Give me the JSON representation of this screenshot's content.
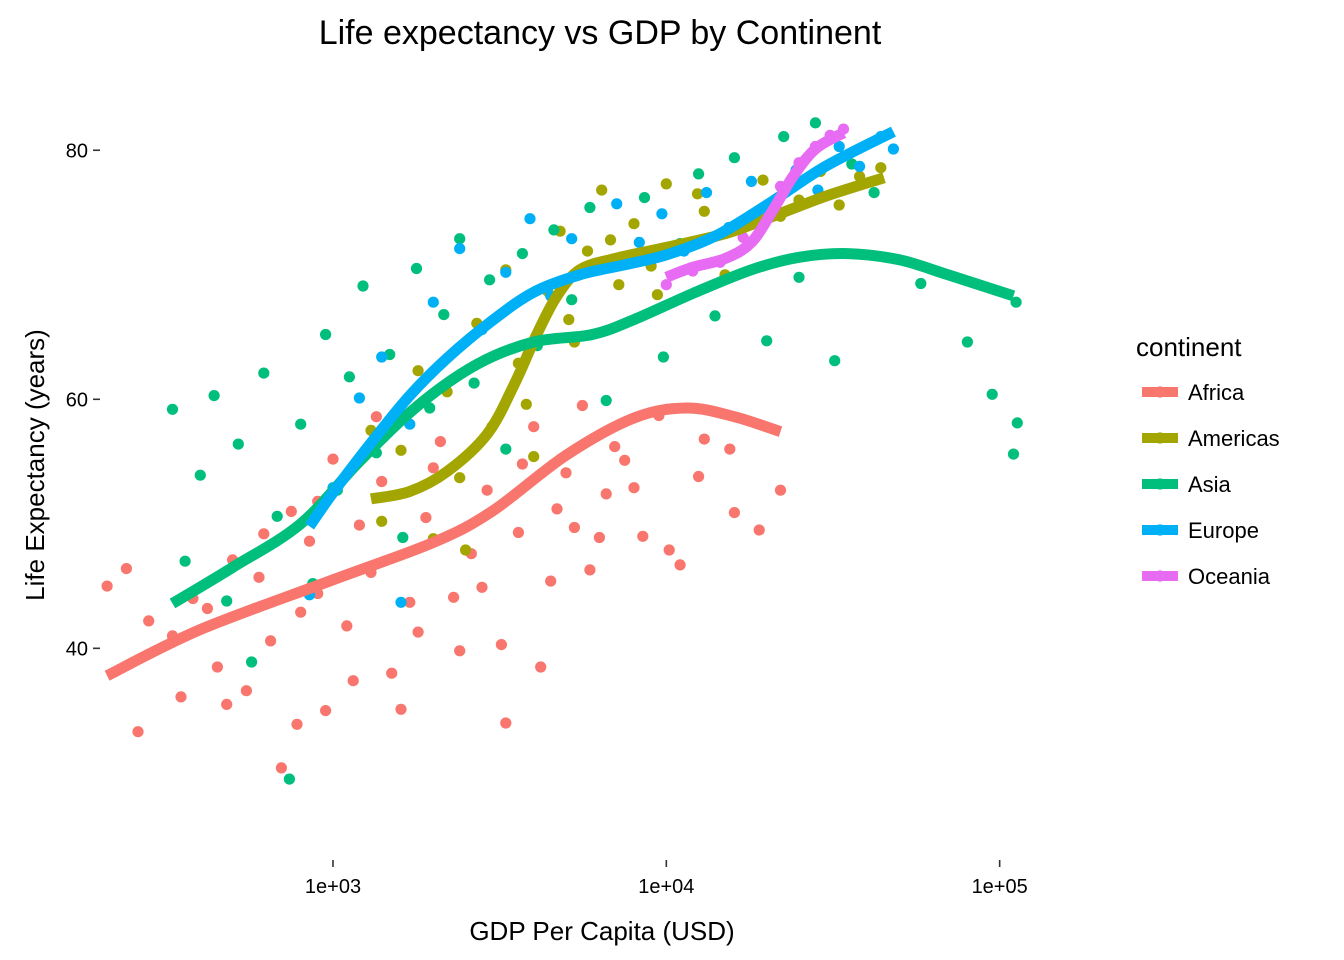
{
  "chart_data": {
    "type": "scatter",
    "title": "Life expectancy vs GDP by Continent",
    "xlabel": "GDP Per Capita (USD)",
    "ylabel": "Life Expectancy (years)",
    "xscale": "log10",
    "xlim": [
      200,
      200000
    ],
    "ylim": [
      23,
      85
    ],
    "x_ticks": [
      1000,
      10000,
      100000
    ],
    "x_tick_labels": [
      "1e+03",
      "1e+04",
      "1e+05"
    ],
    "y_ticks": [
      40,
      60,
      80
    ],
    "y_tick_labels": [
      "40",
      "60",
      "80"
    ],
    "grid": false,
    "legend": {
      "title": "continent",
      "position": "right"
    },
    "smooth_lines": true,
    "series": [
      {
        "name": "Africa",
        "color": "#F8766D",
        "trend": [
          [
            210,
            37.8
          ],
          [
            400,
            41.5
          ],
          [
            1000,
            45.5
          ],
          [
            2000,
            48.5
          ],
          [
            3000,
            51.0
          ],
          [
            5000,
            55.5
          ],
          [
            8000,
            58.5
          ],
          [
            11500,
            59.3
          ],
          [
            16000,
            58.6
          ],
          [
            22000,
            57.4
          ]
        ],
        "points": [
          [
            210,
            45.0
          ],
          [
            240,
            46.4
          ],
          [
            280,
            42.2
          ],
          [
            330,
            41.0
          ],
          [
            380,
            44.0
          ],
          [
            420,
            43.2
          ],
          [
            450,
            38.5
          ],
          [
            500,
            47.1
          ],
          [
            550,
            36.6
          ],
          [
            600,
            45.7
          ],
          [
            650,
            40.6
          ],
          [
            700,
            30.4
          ],
          [
            750,
            51.0
          ],
          [
            800,
            42.9
          ],
          [
            850,
            48.6
          ],
          [
            900,
            44.4
          ],
          [
            950,
            35.0
          ],
          [
            1000,
            55.2
          ],
          [
            1100,
            41.8
          ],
          [
            1200,
            49.9
          ],
          [
            1300,
            46.1
          ],
          [
            1400,
            53.4
          ],
          [
            1500,
            38.0
          ],
          [
            1700,
            43.7
          ],
          [
            1900,
            50.5
          ],
          [
            2100,
            56.6
          ],
          [
            2300,
            44.1
          ],
          [
            2600,
            47.6
          ],
          [
            2900,
            52.7
          ],
          [
            3200,
            40.3
          ],
          [
            3600,
            49.3
          ],
          [
            4000,
            57.8
          ],
          [
            4500,
            45.4
          ],
          [
            5000,
            54.1
          ],
          [
            5600,
            59.5
          ],
          [
            6300,
            48.9
          ],
          [
            7000,
            56.2
          ],
          [
            8000,
            52.9
          ],
          [
            9500,
            58.7
          ],
          [
            11000,
            46.7
          ],
          [
            13000,
            56.8
          ],
          [
            16000,
            50.9
          ],
          [
            19000,
            49.5
          ],
          [
            22000,
            52.7
          ],
          [
            260,
            33.3
          ],
          [
            350,
            36.1
          ],
          [
            480,
            35.5
          ],
          [
            620,
            49.2
          ],
          [
            780,
            33.9
          ],
          [
            900,
            51.8
          ],
          [
            1150,
            37.4
          ],
          [
            1350,
            58.6
          ],
          [
            1600,
            35.1
          ],
          [
            1800,
            41.3
          ],
          [
            2000,
            54.5
          ],
          [
            2400,
            39.8
          ],
          [
            2800,
            44.9
          ],
          [
            3300,
            34.0
          ],
          [
            3700,
            54.8
          ],
          [
            4200,
            38.5
          ],
          [
            4700,
            51.2
          ],
          [
            5300,
            49.7
          ],
          [
            5900,
            46.3
          ],
          [
            6600,
            52.4
          ],
          [
            7500,
            55.1
          ],
          [
            8500,
            49.0
          ],
          [
            10200,
            47.9
          ],
          [
            12500,
            53.8
          ],
          [
            15500,
            56.0
          ]
        ]
      },
      {
        "name": "Americas",
        "color": "#A3A500",
        "trend": [
          [
            1300,
            52.0
          ],
          [
            1700,
            52.6
          ],
          [
            2200,
            54.2
          ],
          [
            2900,
            57.2
          ],
          [
            3500,
            61.2
          ],
          [
            4100,
            65.3
          ],
          [
            4700,
            68.3
          ],
          [
            5500,
            70.4
          ],
          [
            7000,
            71.3
          ],
          [
            10000,
            72.2
          ],
          [
            15000,
            73.3
          ],
          [
            20000,
            74.5
          ],
          [
            30000,
            76.3
          ],
          [
            45000,
            77.8
          ]
        ],
        "points": [
          [
            1300,
            57.5
          ],
          [
            1400,
            50.2
          ],
          [
            1600,
            55.9
          ],
          [
            1800,
            62.3
          ],
          [
            2000,
            48.8
          ],
          [
            2200,
            60.6
          ],
          [
            2400,
            53.7
          ],
          [
            2700,
            66.1
          ],
          [
            3000,
            57.8
          ],
          [
            3300,
            70.4
          ],
          [
            3600,
            62.9
          ],
          [
            4000,
            55.4
          ],
          [
            4400,
            68.7
          ],
          [
            4800,
            73.5
          ],
          [
            5300,
            64.6
          ],
          [
            5800,
            71.9
          ],
          [
            6400,
            76.8
          ],
          [
            7200,
            69.2
          ],
          [
            8000,
            74.1
          ],
          [
            9000,
            70.7
          ],
          [
            10000,
            77.3
          ],
          [
            11500,
            72.4
          ],
          [
            13000,
            75.1
          ],
          [
            15000,
            70.0
          ],
          [
            17000,
            73.9
          ],
          [
            19500,
            77.6
          ],
          [
            22000,
            74.7
          ],
          [
            25000,
            76.0
          ],
          [
            29000,
            78.3
          ],
          [
            33000,
            75.6
          ],
          [
            38000,
            77.9
          ],
          [
            44000,
            78.6
          ],
          [
            2500,
            47.9
          ],
          [
            3800,
            59.6
          ],
          [
            5100,
            66.4
          ],
          [
            6800,
            72.8
          ],
          [
            9400,
            68.4
          ],
          [
            12400,
            76.5
          ]
        ]
      },
      {
        "name": "Asia",
        "color": "#00BF7D",
        "trend": [
          [
            330,
            43.6
          ],
          [
            500,
            46.5
          ],
          [
            800,
            50.0
          ],
          [
            1200,
            55.0
          ],
          [
            1800,
            59.5
          ],
          [
            2700,
            62.8
          ],
          [
            4000,
            64.6
          ],
          [
            6000,
            65.2
          ],
          [
            8000,
            66.4
          ],
          [
            12000,
            68.5
          ],
          [
            18000,
            70.4
          ],
          [
            25000,
            71.4
          ],
          [
            35000,
            71.7
          ],
          [
            50000,
            71.2
          ],
          [
            70000,
            70.0
          ],
          [
            110000,
            68.3
          ]
        ],
        "points": [
          [
            330,
            59.2
          ],
          [
            360,
            47.0
          ],
          [
            400,
            53.9
          ],
          [
            440,
            60.3
          ],
          [
            480,
            43.8
          ],
          [
            520,
            56.4
          ],
          [
            570,
            38.9
          ],
          [
            620,
            62.1
          ],
          [
            680,
            50.6
          ],
          [
            740,
            29.5
          ],
          [
            800,
            58.0
          ],
          [
            870,
            45.2
          ],
          [
            950,
            65.2
          ],
          [
            1030,
            52.7
          ],
          [
            1120,
            61.8
          ],
          [
            1230,
            69.1
          ],
          [
            1350,
            55.7
          ],
          [
            1480,
            63.6
          ],
          [
            1620,
            48.9
          ],
          [
            1780,
            70.5
          ],
          [
            1950,
            59.3
          ],
          [
            2150,
            66.8
          ],
          [
            2400,
            72.9
          ],
          [
            2650,
            61.3
          ],
          [
            2950,
            69.6
          ],
          [
            3300,
            56.0
          ],
          [
            3700,
            71.7
          ],
          [
            4100,
            64.3
          ],
          [
            4600,
            73.6
          ],
          [
            5200,
            68.0
          ],
          [
            5900,
            75.4
          ],
          [
            6600,
            59.9
          ],
          [
            7500,
            71.1
          ],
          [
            8600,
            76.2
          ],
          [
            9800,
            63.4
          ],
          [
            11000,
            72.5
          ],
          [
            12500,
            78.1
          ],
          [
            14000,
            66.7
          ],
          [
            16000,
            79.4
          ],
          [
            18000,
            74.8
          ],
          [
            20000,
            64.7
          ],
          [
            22500,
            81.1
          ],
          [
            25000,
            69.8
          ],
          [
            28000,
            82.2
          ],
          [
            32000,
            63.1
          ],
          [
            36000,
            78.9
          ],
          [
            42000,
            76.6
          ],
          [
            58000,
            69.3
          ],
          [
            80000,
            64.6
          ],
          [
            95000,
            60.4
          ],
          [
            110000,
            55.6
          ],
          [
            113000,
            58.1
          ],
          [
            112000,
            67.8
          ]
        ]
      },
      {
        "name": "Europe",
        "color": "#00B0F6",
        "trend": [
          [
            850,
            49.8
          ],
          [
            1000,
            52.5
          ],
          [
            1300,
            56.5
          ],
          [
            1700,
            60.3
          ],
          [
            2200,
            63.3
          ],
          [
            3000,
            66.3
          ],
          [
            4000,
            68.6
          ],
          [
            5500,
            70.0
          ],
          [
            7500,
            70.8
          ],
          [
            10000,
            71.6
          ],
          [
            14000,
            73.1
          ],
          [
            20000,
            75.6
          ],
          [
            30000,
            78.7
          ],
          [
            48000,
            81.5
          ]
        ],
        "points": [
          [
            850,
            44.3
          ],
          [
            1000,
            52.9
          ],
          [
            1200,
            60.1
          ],
          [
            1400,
            63.4
          ],
          [
            1700,
            58.0
          ],
          [
            2000,
            67.8
          ],
          [
            2400,
            72.1
          ],
          [
            2800,
            65.6
          ],
          [
            3300,
            70.2
          ],
          [
            3900,
            74.5
          ],
          [
            4500,
            68.3
          ],
          [
            5200,
            72.9
          ],
          [
            6100,
            70.8
          ],
          [
            7100,
            75.7
          ],
          [
            8300,
            72.6
          ],
          [
            9700,
            74.9
          ],
          [
            11300,
            71.9
          ],
          [
            13200,
            76.6
          ],
          [
            15400,
            73.8
          ],
          [
            18000,
            77.5
          ],
          [
            21000,
            75.9
          ],
          [
            24500,
            78.4
          ],
          [
            28500,
            76.8
          ],
          [
            33000,
            80.3
          ],
          [
            38000,
            78.7
          ],
          [
            44000,
            81.1
          ],
          [
            48000,
            80.1
          ],
          [
            1600,
            43.7
          ]
        ]
      },
      {
        "name": "Oceania",
        "color": "#E76BF3",
        "trend": [
          [
            10000,
            69.8
          ],
          [
            12000,
            70.6
          ],
          [
            15000,
            71.3
          ],
          [
            18000,
            72.6
          ],
          [
            21000,
            75.3
          ],
          [
            24000,
            77.9
          ],
          [
            28000,
            80.1
          ],
          [
            34000,
            81.4
          ]
        ],
        "points": [
          [
            10000,
            69.2
          ],
          [
            12000,
            70.3
          ],
          [
            14500,
            71.0
          ],
          [
            17000,
            73.0
          ],
          [
            19500,
            75.2
          ],
          [
            22000,
            77.1
          ],
          [
            25000,
            79.0
          ],
          [
            28000,
            80.3
          ],
          [
            31000,
            81.2
          ],
          [
            34000,
            81.7
          ]
        ]
      }
    ]
  }
}
